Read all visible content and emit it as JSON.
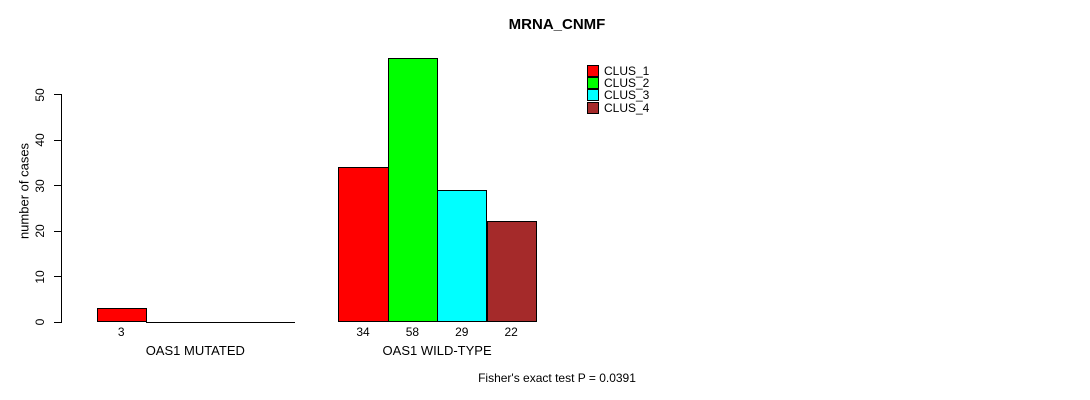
{
  "chart_data": {
    "type": "bar",
    "title": "MRNA_CNMF",
    "xlabel": "",
    "ylabel": "number of cases",
    "ylim": [
      0,
      58
    ],
    "yticks": [
      0,
      10,
      20,
      30,
      40,
      50
    ],
    "grid": false,
    "legend_position": "top-right",
    "show_bar_value_labels": true,
    "categories": [
      "OAS1 MUTATED",
      "OAS1 WILD-TYPE"
    ],
    "series": [
      {
        "name": "CLUS_1",
        "color": "#ff0000",
        "values": [
          3,
          34
        ]
      },
      {
        "name": "CLUS_2",
        "color": "#00ff00",
        "values": [
          0,
          58
        ]
      },
      {
        "name": "CLUS_3",
        "color": "#00ffff",
        "values": [
          0,
          29
        ]
      },
      {
        "name": "CLUS_4",
        "color": "#a52a2a",
        "values": [
          0,
          22
        ]
      }
    ],
    "annotation": "Fisher's exact test P = 0.0391"
  }
}
